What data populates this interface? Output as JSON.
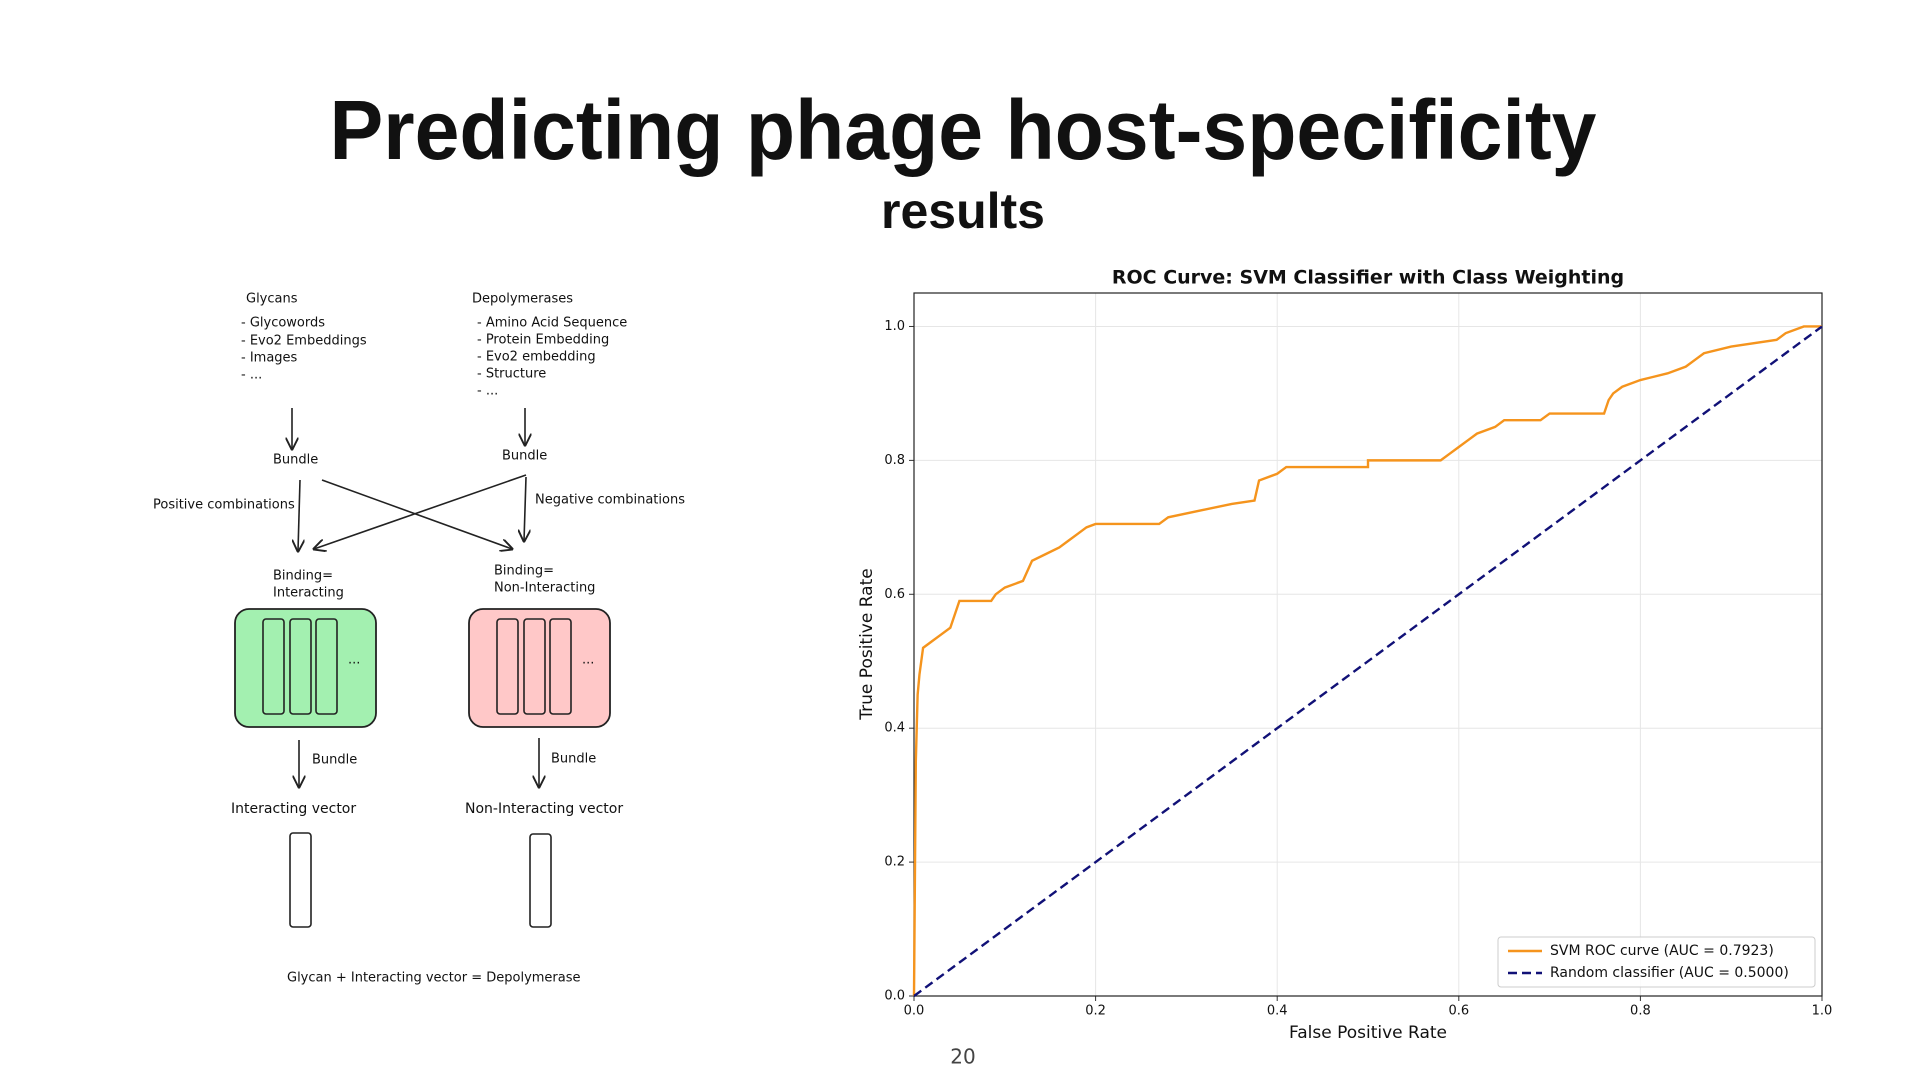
{
  "title": "Predicting phage host-specificity",
  "subtitle": "results",
  "page_number": "20",
  "diagram": {
    "glycans": {
      "title": "Glycans",
      "items": [
        "- Glycowords",
        "- Evo2 Embeddings",
        "- Images",
        "- ..."
      ]
    },
    "depolymerases": {
      "title": "Depolymerases",
      "items": [
        "- Amino Acid Sequence",
        "- Protein Embedding",
        "- Evo2 embedding",
        "- Structure",
        "- ..."
      ]
    },
    "bundle_left": "Bundle",
    "bundle_right": "Bundle",
    "positive_label": "Positive combinations",
    "negative_label": "Negative combinations",
    "binding_left": [
      "Binding=",
      "Interacting"
    ],
    "binding_right": [
      "Binding=",
      "Non-Interacting"
    ],
    "box_left_more": "...",
    "box_right_more": "...",
    "bundle_left_2": "Bundle",
    "bundle_right_2": "Bundle",
    "vector_left": "Interacting vector",
    "vector_right": "Non-Interacting vector",
    "equation": "Glycan + Interacting vector = Depolymerase"
  },
  "chart_data": {
    "type": "line",
    "title": "ROC Curve: SVM Classifier with Class Weighting",
    "x_label": "False Positive Rate",
    "y_label": "True Positive Rate",
    "xlim": [
      0,
      1
    ],
    "ylim": [
      0,
      1.05
    ],
    "xticks": [
      {
        "value": 0,
        "label": "0.0"
      },
      0.2,
      0.4,
      0.6,
      0.8,
      {
        "value": 1,
        "label": "1.0"
      }
    ],
    "yticks": [
      {
        "value": 0,
        "label": "0.0"
      },
      0.2,
      0.4,
      0.6,
      0.8,
      {
        "value": 1,
        "label": "1.0"
      }
    ],
    "grid": true,
    "legend": "lower right",
    "series": [
      {
        "name": "SVM ROC curve (AUC = 0.7923)",
        "color": "#f5941d",
        "dash": "solid",
        "x": [
          0,
          0.002,
          0.004,
          0.006,
          0.008,
          0.01,
          0.02,
          0.03,
          0.04,
          0.045,
          0.05,
          0.085,
          0.09,
          0.1,
          0.12,
          0.13,
          0.145,
          0.16,
          0.17,
          0.18,
          0.19,
          0.2,
          0.27,
          0.28,
          0.315,
          0.35,
          0.375,
          0.38,
          0.4,
          0.41,
          0.5,
          0.5,
          0.58,
          0.59,
          0.6,
          0.61,
          0.62,
          0.64,
          0.65,
          0.69,
          0.7,
          0.76,
          0.765,
          0.77,
          0.78,
          0.8,
          0.83,
          0.85,
          0.86,
          0.87,
          0.9,
          0.95,
          0.96,
          0.98,
          1.0
        ],
        "values": [
          0,
          0.35,
          0.45,
          0.48,
          0.5,
          0.52,
          0.53,
          0.54,
          0.55,
          0.57,
          0.59,
          0.59,
          0.6,
          0.61,
          0.62,
          0.65,
          0.66,
          0.67,
          0.68,
          0.69,
          0.7,
          0.705,
          0.705,
          0.715,
          0.725,
          0.735,
          0.74,
          0.77,
          0.78,
          0.79,
          0.79,
          0.8,
          0.8,
          0.81,
          0.82,
          0.83,
          0.84,
          0.85,
          0.86,
          0.86,
          0.87,
          0.87,
          0.89,
          0.9,
          0.91,
          0.92,
          0.93,
          0.94,
          0.95,
          0.96,
          0.97,
          0.98,
          0.99,
          1.0,
          1.0
        ]
      },
      {
        "name": "Random classifier (AUC = 0.5000)",
        "color": "#111177",
        "dash": "dashed",
        "x": [
          0,
          1
        ],
        "values": [
          0,
          1
        ]
      }
    ]
  }
}
